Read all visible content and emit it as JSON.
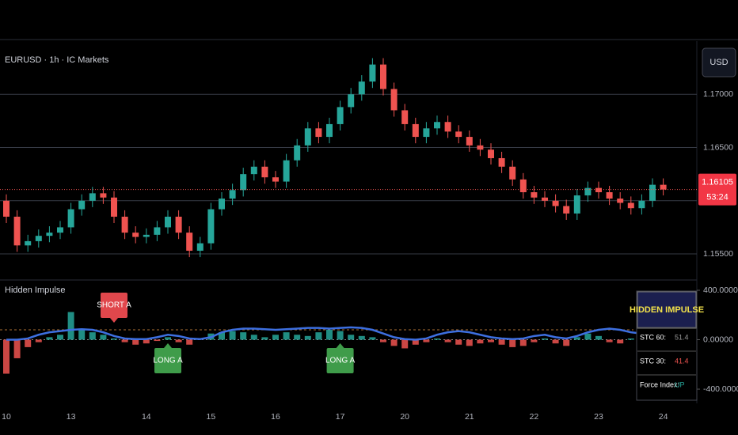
{
  "chart_data": [
    {
      "type": "candlestick",
      "title": "EURUSD · 1h · IC Markets",
      "currency": "USD",
      "categories": [
        "10",
        null,
        null,
        null,
        null,
        null,
        "13",
        null,
        null,
        null,
        null,
        null,
        null,
        "14",
        null,
        null,
        null,
        null,
        null,
        "15",
        null,
        null,
        null,
        null,
        null,
        "16",
        null,
        null,
        null,
        null,
        null,
        "17",
        null,
        null,
        null,
        null,
        null,
        "20",
        null,
        null,
        null,
        null,
        null,
        "21",
        null,
        null,
        null,
        null,
        null,
        "22",
        null,
        null,
        null,
        null,
        null,
        "23",
        null,
        null,
        null,
        null,
        null,
        "24"
      ],
      "open": [
        1.16,
        1.1585,
        1.1558,
        1.1562,
        1.1567,
        1.157,
        1.1575,
        1.1592,
        1.16,
        1.1607,
        1.1603,
        1.1585,
        1.157,
        1.1566,
        1.1568,
        1.1575,
        1.1585,
        1.157,
        1.1553,
        1.156,
        1.1592,
        1.1602,
        1.161,
        1.1625,
        1.1632,
        1.1622,
        1.1618,
        1.1638,
        1.1652,
        1.1668,
        1.166,
        1.1672,
        1.1688,
        1.17,
        1.1712,
        1.1728,
        1.1705,
        1.1685,
        1.1672,
        1.166,
        1.1668,
        1.1674,
        1.1665,
        1.166,
        1.1652,
        1.1648,
        1.164,
        1.1632,
        1.162,
        1.1608,
        1.1603,
        1.16,
        1.1595,
        1.1588,
        1.1605,
        1.1612,
        1.1608,
        1.1602,
        1.1598,
        1.1593,
        1.16,
        1.1615
      ],
      "high": [
        1.1606,
        1.1591,
        1.1568,
        1.1573,
        1.1576,
        1.1581,
        1.1598,
        1.1606,
        1.1613,
        1.1613,
        1.1609,
        1.1591,
        1.1576,
        1.1574,
        1.1581,
        1.1591,
        1.1591,
        1.1576,
        1.1566,
        1.1598,
        1.1608,
        1.1616,
        1.1631,
        1.1638,
        1.1638,
        1.1628,
        1.1644,
        1.1658,
        1.1674,
        1.1674,
        1.1678,
        1.1694,
        1.1706,
        1.1718,
        1.1734,
        1.1734,
        1.1711,
        1.1691,
        1.1678,
        1.1674,
        1.168,
        1.168,
        1.1671,
        1.1666,
        1.1658,
        1.1654,
        1.1646,
        1.1638,
        1.1626,
        1.1614,
        1.1609,
        1.1606,
        1.1601,
        1.1611,
        1.1618,
        1.1618,
        1.1614,
        1.1608,
        1.1604,
        1.1606,
        1.1621,
        1.1621
      ],
      "low": [
        1.1579,
        1.1552,
        1.1552,
        1.1556,
        1.1561,
        1.1564,
        1.1569,
        1.1586,
        1.1594,
        1.1597,
        1.1579,
        1.1564,
        1.156,
        1.156,
        1.1562,
        1.1569,
        1.1564,
        1.1547,
        1.1547,
        1.1554,
        1.1586,
        1.1596,
        1.1604,
        1.1619,
        1.1616,
        1.1612,
        1.1612,
        1.1632,
        1.1646,
        1.1654,
        1.1654,
        1.1666,
        1.1682,
        1.1694,
        1.1706,
        1.1699,
        1.1679,
        1.1666,
        1.1654,
        1.1654,
        1.1662,
        1.1659,
        1.1654,
        1.1646,
        1.1642,
        1.1634,
        1.1626,
        1.1614,
        1.1602,
        1.1597,
        1.1594,
        1.1589,
        1.1582,
        1.1582,
        1.1599,
        1.1602,
        1.1596,
        1.1592,
        1.1587,
        1.1587,
        1.1594,
        1.1605
      ],
      "close": [
        1.1585,
        1.1558,
        1.1562,
        1.1567,
        1.157,
        1.1575,
        1.1592,
        1.16,
        1.1607,
        1.1603,
        1.1585,
        1.157,
        1.1566,
        1.1568,
        1.1575,
        1.1585,
        1.157,
        1.1553,
        1.156,
        1.1592,
        1.1602,
        1.161,
        1.1625,
        1.1632,
        1.1622,
        1.1618,
        1.1638,
        1.1652,
        1.1668,
        1.166,
        1.1672,
        1.1688,
        1.17,
        1.1712,
        1.1728,
        1.1705,
        1.1685,
        1.1672,
        1.166,
        1.1668,
        1.1674,
        1.1665,
        1.166,
        1.1652,
        1.1648,
        1.164,
        1.1632,
        1.162,
        1.1608,
        1.1603,
        1.16,
        1.1595,
        1.1588,
        1.1605,
        1.1612,
        1.1608,
        1.1602,
        1.1598,
        1.1593,
        1.16,
        1.1615,
        1.16105
      ],
      "up_color": "#26a69a",
      "down_color": "#ef5350",
      "ylim": [
        1.1527,
        1.175
      ],
      "yticks": [
        {
          "value": 1.155,
          "label": "1.15500"
        },
        {
          "value": 1.16,
          "label": "1.16000"
        },
        {
          "value": 1.165,
          "label": "1.16500"
        },
        {
          "value": 1.17,
          "label": "1.17000"
        }
      ],
      "grid": true,
      "last_price": 1.16105,
      "countdown": "53:24"
    },
    {
      "type": "bar",
      "title": "Hidden Impulse",
      "values": [
        -275,
        -150,
        -60,
        -20,
        20,
        40,
        224,
        90,
        60,
        40,
        10,
        -20,
        -40,
        -30,
        -10,
        20,
        -20,
        -40,
        10,
        50,
        60,
        70,
        60,
        40,
        20,
        40,
        60,
        40,
        30,
        60,
        80,
        70,
        40,
        30,
        20,
        -20,
        -50,
        -70,
        -40,
        -20,
        10,
        -20,
        -40,
        -50,
        -30,
        -20,
        -40,
        -60,
        -50,
        -20,
        10,
        -30,
        -50,
        20,
        50,
        30,
        -20,
        -30,
        10,
        40,
        60,
        30
      ],
      "positive_color": "#26a69a",
      "negative_color": "#ef5350",
      "line_values": [
        0,
        0,
        10,
        40,
        60,
        70,
        80,
        85,
        80,
        60,
        30,
        10,
        5,
        5,
        20,
        40,
        30,
        10,
        5,
        20,
        60,
        80,
        90,
        90,
        85,
        80,
        85,
        90,
        95,
        95,
        90,
        95,
        100,
        95,
        80,
        50,
        20,
        5,
        0,
        10,
        40,
        60,
        70,
        60,
        40,
        20,
        10,
        5,
        10,
        30,
        40,
        20,
        10,
        30,
        60,
        80,
        90,
        80,
        60,
        50,
        70,
        90
      ],
      "line_color": "#3d6fe0",
      "levels": [
        80
      ],
      "ylim": [
        -483,
        464
      ],
      "yticks": [
        {
          "value": 400,
          "label": "400.00000"
        },
        {
          "value": 0,
          "label": "0.00000"
        },
        {
          "value": -400,
          "label": "-400.00000"
        }
      ],
      "signals": [
        {
          "label": "SHORT A",
          "at": 10,
          "kind": "short",
          "color": "#e0474c"
        },
        {
          "label": "LONG A",
          "at": 15,
          "kind": "long",
          "color": "#3f9c4a"
        },
        {
          "label": "LONG A",
          "at": 31,
          "kind": "long",
          "color": "#3f9c4a"
        }
      ]
    }
  ],
  "panel": {
    "title": "HIDDEN IMPULSE",
    "rows": [
      [
        "STC 60:",
        "51.4"
      ],
      [
        "STC 30:",
        "41.4"
      ],
      [
        "Force Index:",
        "UP"
      ]
    ]
  }
}
